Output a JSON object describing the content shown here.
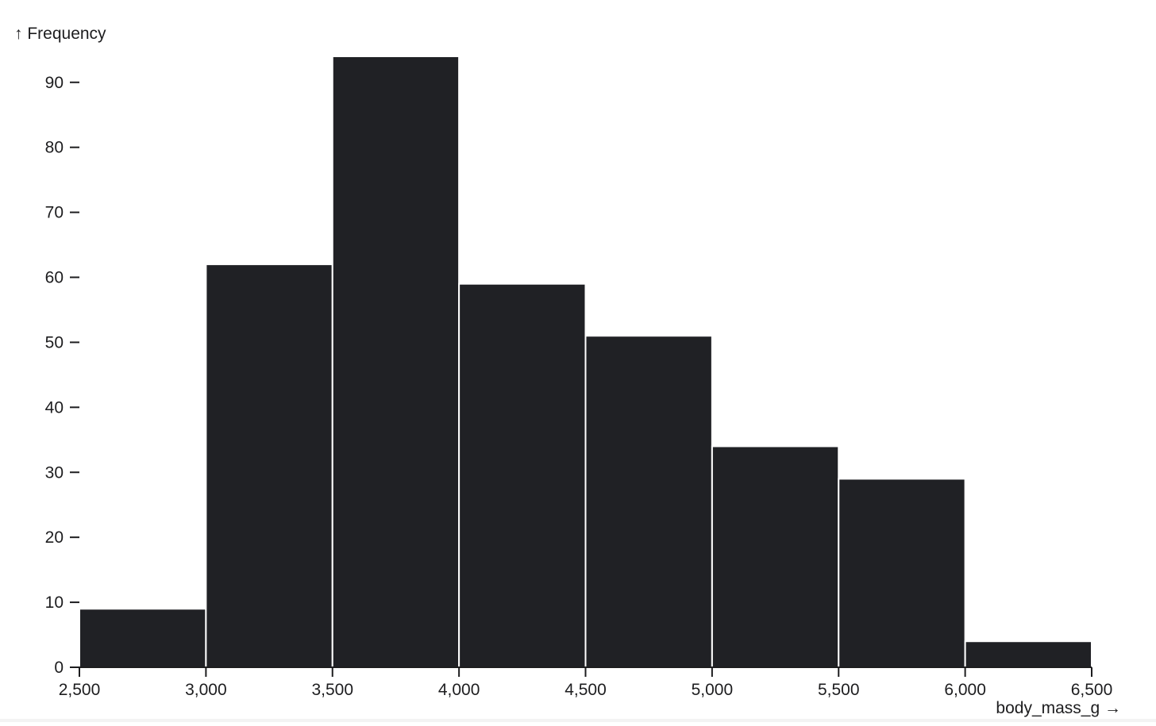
{
  "chart_data": {
    "type": "bar",
    "chart_subtype": "histogram",
    "bins": [
      {
        "x0": 2500,
        "x1": 3000,
        "count": 9
      },
      {
        "x0": 3000,
        "x1": 3500,
        "count": 62
      },
      {
        "x0": 3500,
        "x1": 4000,
        "count": 94
      },
      {
        "x0": 4000,
        "x1": 4500,
        "count": 59
      },
      {
        "x0": 4500,
        "x1": 5000,
        "count": 51
      },
      {
        "x0": 5000,
        "x1": 5500,
        "count": 34
      },
      {
        "x0": 5500,
        "x1": 6000,
        "count": 29
      },
      {
        "x0": 6000,
        "x1": 6500,
        "count": 4
      }
    ],
    "xlabel": "body_mass_g →",
    "ylabel": "↑ Frequency",
    "xlim": [
      2500,
      6500
    ],
    "ylim": [
      0,
      94
    ],
    "x_ticks": [
      "2,500",
      "3,000",
      "3,500",
      "4,000",
      "4,500",
      "5,000",
      "5,500",
      "6,000",
      "6,500"
    ],
    "x_tick_values": [
      2500,
      3000,
      3500,
      4000,
      4500,
      5000,
      5500,
      6000,
      6500
    ],
    "y_ticks": [
      "0",
      "10",
      "20",
      "30",
      "40",
      "50",
      "60",
      "70",
      "80",
      "90"
    ],
    "y_tick_values": [
      0,
      10,
      20,
      30,
      40,
      50,
      60,
      70,
      80,
      90
    ],
    "grid": false,
    "bar_color": "#202125",
    "bar_edge_color": "#ffffff"
  }
}
